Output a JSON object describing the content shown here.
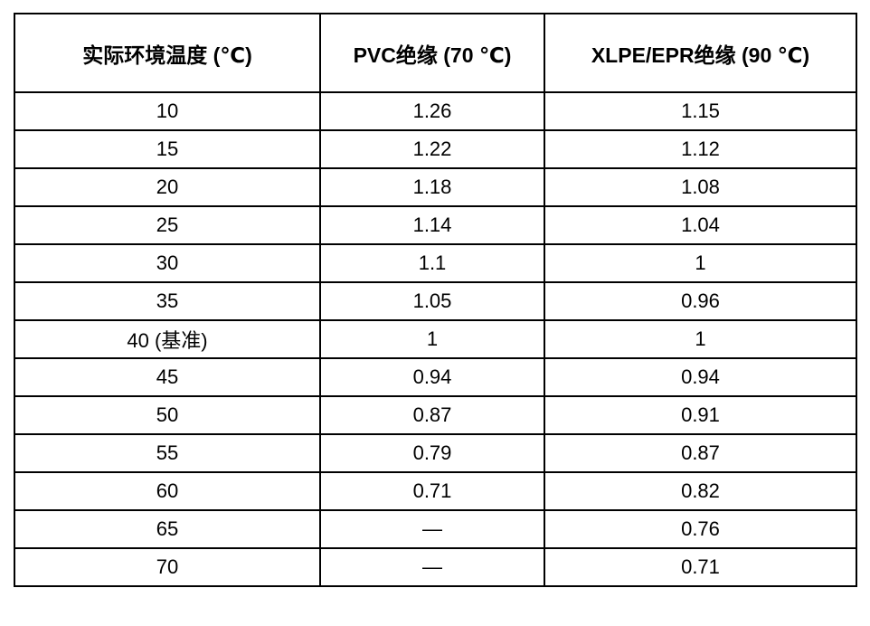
{
  "chart_data": {
    "type": "table",
    "title": "",
    "columns": [
      "实际环境温度 (℃)",
      "PVC绝缘 (70 ℃)",
      "XLPE/EPR绝缘 (90 ℃)"
    ],
    "rows": [
      [
        "10",
        "1.26",
        "1.15"
      ],
      [
        "15",
        "1.22",
        "1.12"
      ],
      [
        "20",
        "1.18",
        "1.08"
      ],
      [
        "25",
        "1.14",
        "1.04"
      ],
      [
        "30",
        "1.1",
        "1"
      ],
      [
        "35",
        "1.05",
        "0.96"
      ],
      [
        "40 (基准)",
        "1",
        "1"
      ],
      [
        "45",
        "0.94",
        "0.94"
      ],
      [
        "50",
        "0.87",
        "0.91"
      ],
      [
        "55",
        "0.79",
        "0.87"
      ],
      [
        "60",
        "0.71",
        "0.82"
      ],
      [
        "65",
        "—",
        "0.76"
      ],
      [
        "70",
        "—",
        "0.71"
      ]
    ],
    "layout": {
      "border_color": "#000000",
      "text_color": "#000000",
      "background": "#ffffff",
      "grid": true
    }
  }
}
